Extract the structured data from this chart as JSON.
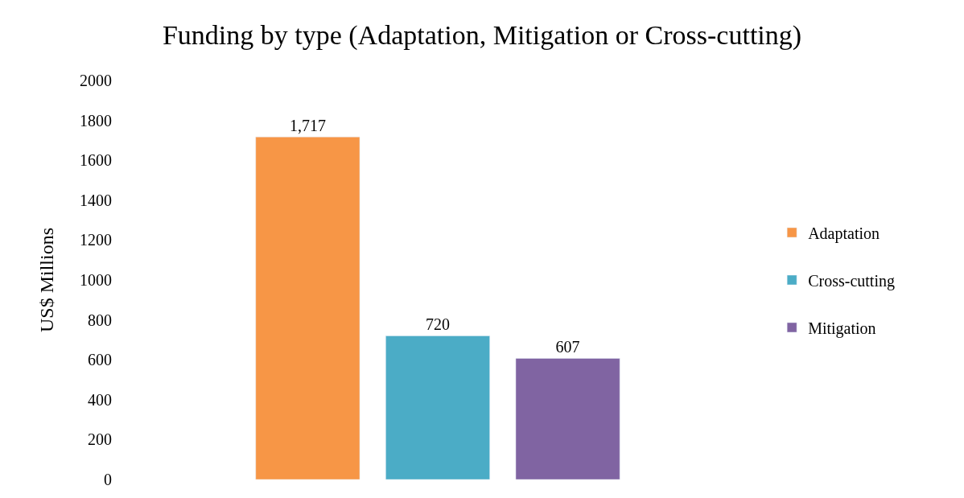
{
  "chart_data": {
    "type": "bar",
    "title": "Funding by type (Adaptation, Mitigation or Cross-cutting)",
    "ylabel": "US$ Millions",
    "categories": [
      null
    ],
    "series": [
      {
        "name": "Adaptation",
        "color": "#f79646",
        "values": [
          1717
        ],
        "value_labels": [
          "1,717"
        ]
      },
      {
        "name": "Cross-cutting",
        "color": "#4bacc6",
        "values": [
          720
        ],
        "value_labels": [
          "720"
        ]
      },
      {
        "name": "Mitigation",
        "color": "#8064a2",
        "values": [
          607
        ],
        "value_labels": [
          "607"
        ]
      }
    ],
    "ylim": [
      0,
      2000
    ],
    "yticks": [
      0,
      200,
      400,
      600,
      800,
      1000,
      1200,
      1400,
      1600,
      1800,
      2000
    ],
    "legend": "right"
  }
}
